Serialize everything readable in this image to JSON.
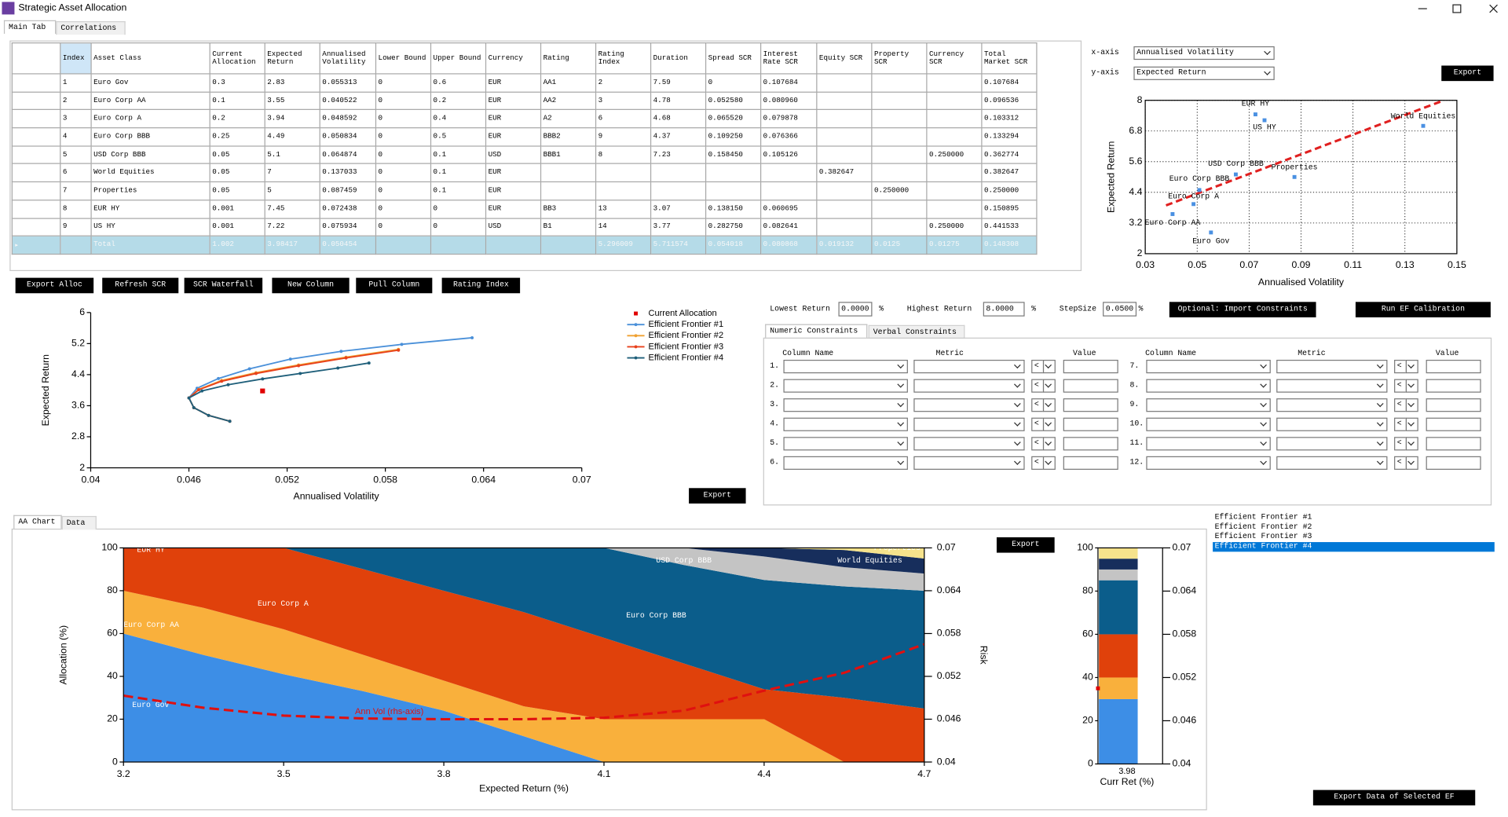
{
  "window": {
    "title": "Strategic Asset Allocation"
  },
  "tabs": [
    "Main Tab",
    "Correlations"
  ],
  "table": {
    "columns": [
      "Index",
      "Asset Class",
      "Current Allocation",
      "Expected Return",
      "Annualised Volatility",
      "Lower Bound",
      "Upper Bound",
      "Currency",
      "Rating",
      "Rating Index",
      "Duration",
      "Spread SCR",
      "Interest Rate SCR",
      "Equity SCR",
      "Property SCR",
      "Currency SCR",
      "Total Market SCR"
    ],
    "rows": [
      [
        "1",
        "Euro Gov",
        "0.3",
        "2.83",
        "0.055313",
        "0",
        "0.6",
        "EUR",
        "AA1",
        "2",
        "7.59",
        "0",
        "0.107684",
        null,
        null,
        null,
        "0.107684"
      ],
      [
        "2",
        "Euro Corp AA",
        "0.1",
        "3.55",
        "0.040522",
        "0",
        "0.2",
        "EUR",
        "AA2",
        "3",
        "4.78",
        "0.052580",
        "0.080960",
        null,
        null,
        null,
        "0.096536"
      ],
      [
        "3",
        "Euro Corp A",
        "0.2",
        "3.94",
        "0.048592",
        "0",
        "0.4",
        "EUR",
        "A2",
        "6",
        "4.68",
        "0.065520",
        "0.079878",
        null,
        null,
        null,
        "0.103312"
      ],
      [
        "4",
        "Euro Corp BBB",
        "0.25",
        "4.49",
        "0.050834",
        "0",
        "0.5",
        "EUR",
        "BBB2",
        "9",
        "4.37",
        "0.109250",
        "0.076366",
        null,
        null,
        null,
        "0.133294"
      ],
      [
        "5",
        "USD Corp BBB",
        "0.05",
        "5.1",
        "0.064874",
        "0",
        "0.1",
        "USD",
        "BBB1",
        "8",
        "7.23",
        "0.158450",
        "0.105126",
        null,
        null,
        "0.250000",
        "0.362774"
      ],
      [
        "6",
        "World Equities",
        "0.05",
        "7",
        "0.137033",
        "0",
        "0.1",
        "EUR",
        null,
        null,
        null,
        null,
        null,
        "0.382647",
        null,
        null,
        "0.382647"
      ],
      [
        "7",
        "Properties",
        "0.05",
        "5",
        "0.087459",
        "0",
        "0.1",
        "EUR",
        null,
        null,
        null,
        null,
        null,
        null,
        "0.250000",
        null,
        "0.250000"
      ],
      [
        "8",
        "EUR HY",
        "0.001",
        "7.45",
        "0.072438",
        "0",
        "0",
        "EUR",
        "BB3",
        "13",
        "3.07",
        "0.138150",
        "0.060695",
        null,
        null,
        null,
        "0.150895"
      ],
      [
        "9",
        "US HY",
        "0.001",
        "7.22",
        "0.075934",
        "0",
        "0",
        "USD",
        "B1",
        "14",
        "3.77",
        "0.282750",
        "0.082641",
        null,
        null,
        "0.250000",
        "0.441533"
      ]
    ],
    "total": [
      null,
      "Total",
      "1.002",
      "3.98417",
      "0.050454",
      null,
      null,
      null,
      null,
      "5.296009",
      "5.711574",
      "0.054018",
      "0.080868",
      "0.019132",
      "0.0125",
      "0.01275",
      "0.148308"
    ]
  },
  "buttons": [
    "Export Alloc",
    "Refresh SCR",
    "SCR Waterfall",
    "New Column",
    "Pull Column",
    "Rating Index"
  ],
  "scatter_controls": {
    "x_label": "x-axis",
    "x_value": "Annualised Volatility",
    "y_label": "y-axis",
    "y_value": "Expected Return",
    "export": "Export"
  },
  "frontier_export": "Export",
  "ef_inputs": {
    "lowest_label": "Lowest Return",
    "lowest": "0.0000",
    "highest_label": "Highest Return",
    "highest": "8.0000",
    "step_label": "StepSize",
    "step": "0.0500",
    "unit": "%",
    "import_button": "Optional: Import Constraints",
    "run_button": "Run EF Calibration"
  },
  "constraint_tabs": [
    "Numeric Constraints",
    "Verbal Constraints"
  ],
  "constraint_headers": [
    "Column Name",
    "Metric",
    "Value"
  ],
  "constraint_rows": [
    {
      "label": "1.",
      "operator": "<"
    },
    {
      "label": "2.",
      "operator": "<"
    },
    {
      "label": "3.",
      "operator": "<"
    },
    {
      "label": "4.",
      "operator": "<"
    },
    {
      "label": "5.",
      "operator": "<"
    },
    {
      "label": "6.",
      "operator": "<"
    },
    {
      "label": "7.",
      "operator": "<"
    },
    {
      "label": "8.",
      "operator": "<"
    },
    {
      "label": "9.",
      "operator": "<"
    },
    {
      "label": "10.",
      "operator": "<"
    },
    {
      "label": "11.",
      "operator": "<"
    },
    {
      "label": "12.",
      "operator": "<"
    }
  ],
  "chart_tabs": [
    "AA Chart",
    "Data"
  ],
  "aa_export": "Export",
  "ef_list": {
    "items": [
      "Efficient Frontier #1",
      "Efficient Frontier #2",
      "Efficient Frontier #3",
      "Efficient Frontier #4"
    ],
    "selected": 3
  },
  "export_selected": "Export Data of Selected EF",
  "chart_data": [
    {
      "type": "scatter",
      "x_label": "Annualised Volatility",
      "y_label": "Expected Return",
      "color": "#4a90e2",
      "grid": true,
      "labels": [
        "Euro Gov",
        "Euro Corp AA",
        "Euro Corp A",
        "Euro Corp BBB",
        "USD Corp BBB",
        "World Equities",
        "Properties",
        "EUR HY",
        "US HY"
      ],
      "x": [
        0.055313,
        0.040522,
        0.048592,
        0.050834,
        0.064874,
        0.137033,
        0.087459,
        0.072438,
        0.075934
      ],
      "values": [
        2.83,
        3.55,
        3.94,
        4.49,
        5.1,
        7,
        5,
        7.45,
        7.22
      ],
      "trendline": {
        "color": "#e02020",
        "x": [
          0.038,
          0.145
        ],
        "values": [
          3.89,
          8
        ]
      },
      "xlim": [
        0.03,
        0.15
      ],
      "xticks": [
        0.03,
        0.05,
        0.07,
        0.09,
        0.11,
        0.13,
        0.15
      ],
      "ylim": [
        2,
        8
      ],
      "yticks": [
        2,
        3.2,
        4.4,
        5.6,
        6.8,
        8
      ]
    },
    {
      "type": "line",
      "x_label": "Annualised Volatility",
      "y_label": "Expected Return",
      "series": [
        {
          "name": "Current Allocation",
          "color": "#e00000",
          "marker": "square",
          "x": [
            0.0505
          ],
          "values": [
            3.98
          ]
        },
        {
          "name": "Efficient Frontier #1",
          "color": "#4a90d9",
          "x": [
            0.0485,
            0.0472,
            0.0463,
            0.046,
            0.0465,
            0.0478,
            0.0497,
            0.0522,
            0.0553,
            0.059,
            0.0633
          ],
          "values": [
            3.2,
            3.35,
            3.55,
            3.8,
            4.05,
            4.3,
            4.55,
            4.8,
            5.0,
            5.18,
            5.35
          ]
        },
        {
          "name": "Efficient Frontier #2",
          "color": "#f0a030",
          "x": [
            0.0485,
            0.0472,
            0.0463,
            0.046,
            0.0466,
            0.048,
            0.0501,
            0.0527,
            0.0556,
            0.0588
          ],
          "values": [
            3.2,
            3.35,
            3.55,
            3.8,
            4.02,
            4.25,
            4.45,
            4.65,
            4.85,
            5.05
          ]
        },
        {
          "name": "Efficient Frontier #3",
          "color": "#e8401c",
          "x": [
            0.0485,
            0.0472,
            0.0463,
            0.046,
            0.0466,
            0.048,
            0.0501,
            0.0527,
            0.0556,
            0.0588
          ],
          "values": [
            3.2,
            3.35,
            3.55,
            3.8,
            4.01,
            4.23,
            4.43,
            4.63,
            4.83,
            5.03
          ]
        },
        {
          "name": "Efficient Frontier #4",
          "color": "#1f5f7a",
          "x": [
            0.0485,
            0.0472,
            0.0463,
            0.046,
            0.0468,
            0.0484,
            0.0505,
            0.0528,
            0.0551,
            0.057
          ],
          "values": [
            3.2,
            3.35,
            3.55,
            3.8,
            3.98,
            4.14,
            4.29,
            4.43,
            4.57,
            4.7
          ]
        }
      ],
      "xlim": [
        0.04,
        0.07
      ],
      "xticks": [
        0.04,
        0.046,
        0.052,
        0.058,
        0.064,
        0.07
      ],
      "ylim": [
        2,
        6
      ],
      "yticks": [
        2,
        2.8,
        3.6,
        4.4,
        5.2,
        6
      ]
    },
    {
      "type": "area",
      "x_label": "Expected Return (%)",
      "y_label": "Allocation (%)",
      "y2_label": "Risk",
      "x": [
        3.2,
        3.35,
        3.5,
        3.65,
        3.8,
        3.95,
        4.1,
        4.25,
        4.4,
        4.55,
        4.7
      ],
      "series": [
        {
          "name": "Euro Gov",
          "color": "#3d8ee6",
          "values": [
            60,
            50,
            41,
            33,
            24,
            12,
            0,
            0,
            0,
            0,
            0
          ]
        },
        {
          "name": "Euro Corp AA",
          "color": "#f9b03c",
          "values": [
            20,
            22,
            21,
            17,
            14,
            14,
            20,
            20,
            20,
            0,
            0
          ]
        },
        {
          "name": "Euro Corp A",
          "color": "#e0410b",
          "values": [
            19.5,
            28,
            38,
            40,
            42,
            44,
            38,
            26,
            14,
            30,
            25
          ]
        },
        {
          "name": "EUR HY",
          "color": "#a01c0c",
          "values": [
            0.5,
            0,
            0,
            0,
            0,
            0,
            0,
            0,
            0,
            0,
            0
          ]
        },
        {
          "name": "Euro Corp BBB",
          "color": "#0b5d8b",
          "values": [
            0,
            0,
            0,
            10,
            20,
            30,
            42,
            46,
            51,
            52,
            55
          ]
        },
        {
          "name": "USD Corp BBB",
          "color": "#c4c4c4",
          "values": [
            0,
            0,
            0,
            0,
            0,
            0,
            0,
            8,
            11,
            9,
            8
          ]
        },
        {
          "name": "World Equities",
          "color": "#172e5c",
          "values": [
            0,
            0,
            0,
            0,
            0,
            0,
            0,
            0,
            4,
            8,
            7
          ]
        },
        {
          "name": "Properties",
          "color": "#f6e38c",
          "values": [
            0,
            0,
            0,
            0,
            0,
            0,
            0,
            0,
            0,
            1,
            5
          ]
        },
        {
          "name": "Ann Vol (rhs-axis)",
          "color": "#e01010",
          "axis": "y2",
          "dashed": true,
          "values": [
            0.0493,
            0.0476,
            0.0465,
            0.0461,
            0.046,
            0.046,
            0.0462,
            0.0472,
            0.05,
            0.0525,
            0.0565
          ]
        }
      ],
      "xlim": [
        3.2,
        4.7
      ],
      "xticks": [
        3.2,
        3.5,
        3.8,
        4.1,
        4.4,
        4.7
      ],
      "ylim": [
        0,
        100
      ],
      "yticks": [
        0,
        20,
        40,
        60,
        80,
        100
      ],
      "y2lim": [
        0.04,
        0.07
      ],
      "y2ticks": [
        0.04,
        0.046,
        0.052,
        0.058,
        0.064,
        0.07
      ]
    },
    {
      "type": "bar",
      "stacked": true,
      "x_label": "Curr Ret (%)",
      "categories": [
        "3.98"
      ],
      "series": [
        {
          "name": "Euro Gov",
          "color": "#3d8ee6",
          "values": [
            30
          ]
        },
        {
          "name": "Euro Corp AA",
          "color": "#f9b03c",
          "values": [
            10
          ]
        },
        {
          "name": "Euro Corp A",
          "color": "#e0410b",
          "values": [
            20
          ]
        },
        {
          "name": "Euro Corp BBB",
          "color": "#0b5d8b",
          "values": [
            25
          ]
        },
        {
          "name": "USD Corp BBB",
          "color": "#c4c4c4",
          "values": [
            5
          ]
        },
        {
          "name": "World Equities",
          "color": "#172e5c",
          "values": [
            5
          ]
        },
        {
          "name": "Properties",
          "color": "#f6e38c",
          "values": [
            5
          ]
        }
      ],
      "risk_marker": {
        "axis": "y2",
        "color": "#e00000",
        "value": 0.0505
      },
      "ylim": [
        0,
        100
      ],
      "yticks": [
        0,
        20,
        40,
        60,
        80,
        100
      ],
      "y2lim": [
        0.04,
        0.07
      ],
      "y2ticks": [
        0.04,
        0.046,
        0.052,
        0.058,
        0.064,
        0.07
      ]
    }
  ]
}
